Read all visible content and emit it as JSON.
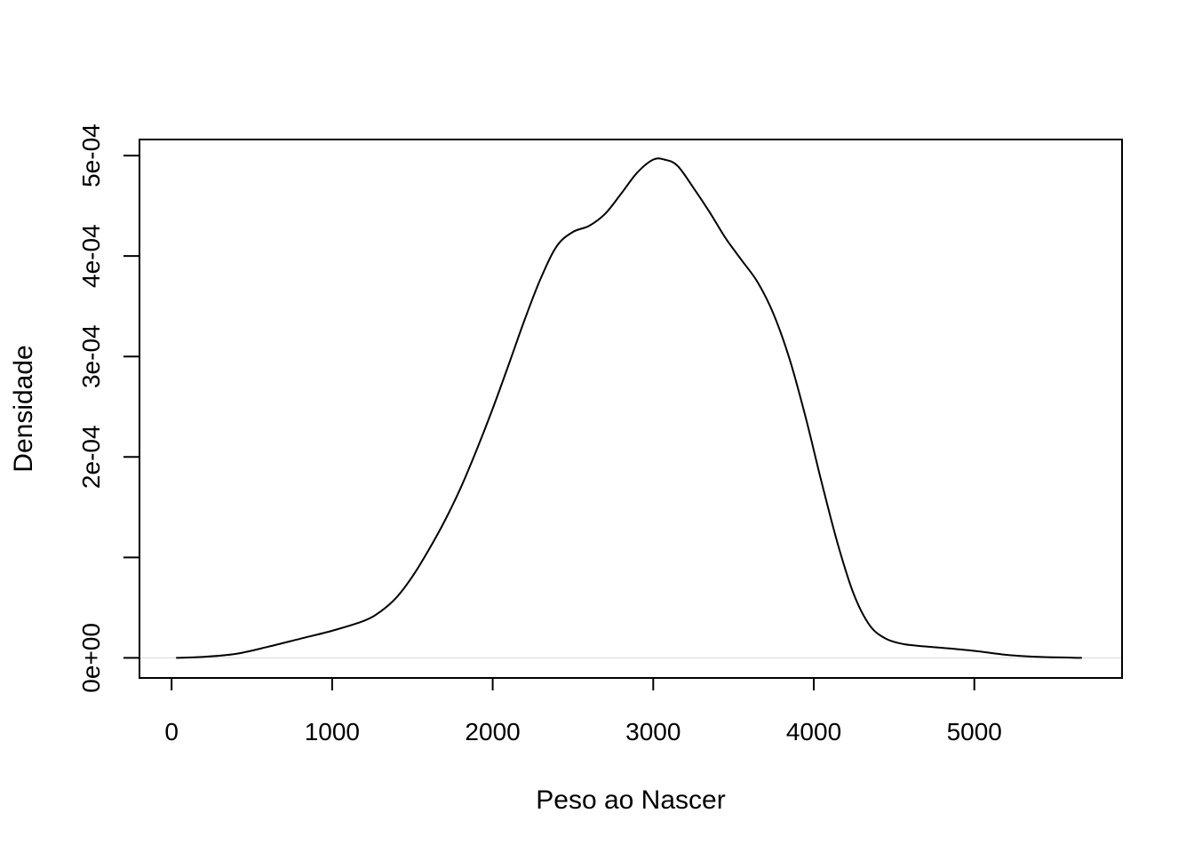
{
  "chart_data": {
    "type": "line",
    "title": "",
    "xlabel": "Peso ao Nascer",
    "ylabel": "Densidade",
    "xlim": [
      -200,
      5920
    ],
    "ylim": [
      -2e-05,
      0.000516
    ],
    "x_ticks": [
      0,
      1000,
      2000,
      3000,
      4000,
      5000
    ],
    "x_tick_labels": [
      "0",
      "1000",
      "2000",
      "3000",
      "4000",
      "5000"
    ],
    "y_ticks": [
      0,
      0.0001,
      0.0002,
      0.0003,
      0.0004,
      0.0005
    ],
    "y_tick_labels": [
      "0e+00",
      "",
      "2e-04",
      "3e-04",
      "4e-04",
      "5e-04"
    ],
    "grid": false,
    "baseline": 0,
    "series": [
      {
        "x": [
          28,
          200,
          400,
          600,
          800,
          1000,
          1200,
          1300,
          1400,
          1500,
          1600,
          1700,
          1800,
          1900,
          2000,
          2100,
          2200,
          2300,
          2400,
          2500,
          2600,
          2700,
          2800,
          2900,
          3000,
          3070,
          3150,
          3250,
          3350,
          3450,
          3550,
          3650,
          3750,
          3850,
          3950,
          4050,
          4150,
          4250,
          4350,
          4450,
          4550,
          4650,
          4800,
          5000,
          5200,
          5400,
          5670
        ],
        "y": [
          0.0,
          1e-06,
          4e-06,
          1.1e-05,
          1.9e-05,
          2.7e-05,
          3.7e-05,
          4.6e-05,
          6e-05,
          8.1e-05,
          0.000107,
          0.000136,
          0.000169,
          0.000207,
          0.000248,
          0.000292,
          0.000337,
          0.000378,
          0.00041,
          0.000424,
          0.00043,
          0.000442,
          0.000462,
          0.000483,
          0.000496,
          0.000496,
          0.00049,
          0.000468,
          0.000444,
          0.000418,
          0.000396,
          0.000374,
          0.000342,
          0.000297,
          0.000239,
          0.000174,
          0.000113,
          6.3e-05,
          3.2e-05,
          1.9e-05,
          1.4e-05,
          1.2e-05,
          1e-05,
          7e-06,
          3e-06,
          1e-06,
          0.0
        ]
      }
    ]
  }
}
